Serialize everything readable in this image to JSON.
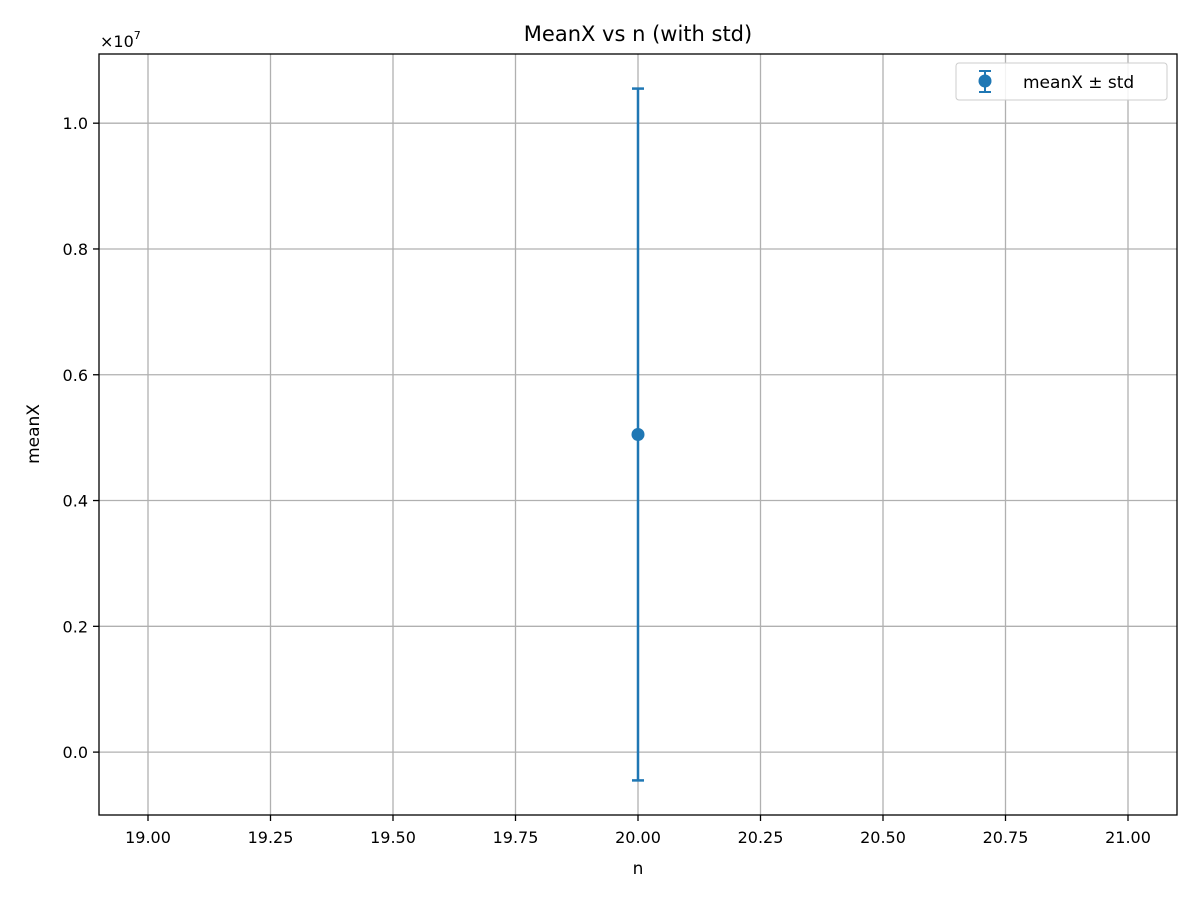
{
  "chart_data": {
    "type": "scatter",
    "title": "MeanX vs n (with std)",
    "xlabel": "n",
    "ylabel": "meanX",
    "xlim": [
      18.9,
      21.1
    ],
    "ylim": [
      -1000000,
      11100000
    ],
    "x_ticks": [
      19.0,
      19.25,
      19.5,
      19.75,
      20.0,
      20.25,
      20.5,
      20.75,
      21.0
    ],
    "x_tick_labels": [
      "19.00",
      "19.25",
      "19.50",
      "19.75",
      "20.00",
      "20.25",
      "20.50",
      "20.75",
      "21.00"
    ],
    "y_ticks": [
      0,
      2000000,
      4000000,
      6000000,
      8000000,
      10000000
    ],
    "y_tick_labels": [
      "0.0",
      "0.2",
      "0.4",
      "0.6",
      "0.8",
      "1.0"
    ],
    "y_multiplier_base": "×10",
    "y_multiplier_exp": "7",
    "grid": true,
    "legend_position": "top-right",
    "color": "#1f77b4",
    "series": [
      {
        "name": "meanX ± std",
        "points": [
          {
            "x": 20.0,
            "y": 5050000,
            "yerr": 5500000
          }
        ]
      }
    ]
  }
}
